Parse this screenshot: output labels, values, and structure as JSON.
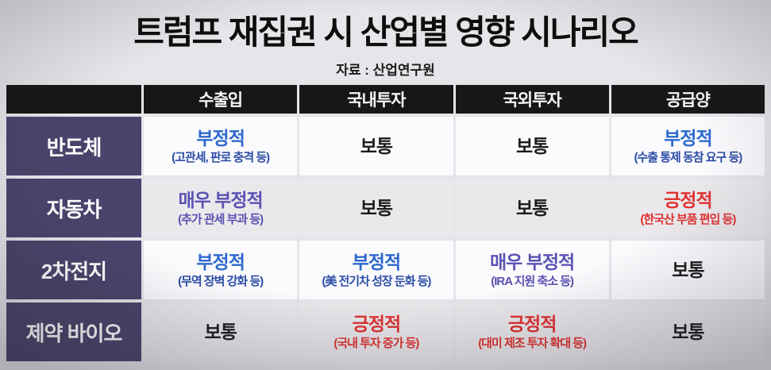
{
  "chart_data": {
    "type": "table",
    "title": "트럼프 재집권 시 산업별 영향 시나리오",
    "source": "자료 : 산업연구원",
    "columns": [
      "수출입",
      "국내투자",
      "국외투자",
      "공급양"
    ],
    "rows": [
      {
        "label": "반도체",
        "cells": [
          {
            "main": "부정적",
            "sub": "(고관세, 판로 충격 등)",
            "sentiment": "negative"
          },
          {
            "main": "보통",
            "sub": "",
            "sentiment": "neutral"
          },
          {
            "main": "보통",
            "sub": "",
            "sentiment": "neutral"
          },
          {
            "main": "부정적",
            "sub": "(수출 통제 동참 요구 등)",
            "sentiment": "negative"
          }
        ]
      },
      {
        "label": "자동차",
        "cells": [
          {
            "main": "매우 부정적",
            "sub": "(추가 관세 부과 등)",
            "sentiment": "very-negative"
          },
          {
            "main": "보통",
            "sub": "",
            "sentiment": "neutral"
          },
          {
            "main": "보통",
            "sub": "",
            "sentiment": "neutral"
          },
          {
            "main": "긍정적",
            "sub": "(한국산 부품 편입 등)",
            "sentiment": "positive"
          }
        ]
      },
      {
        "label": "2차전지",
        "cells": [
          {
            "main": "부정적",
            "sub": "(무역 장벽 강화 등)",
            "sentiment": "negative"
          },
          {
            "main": "부정적",
            "sub": "(美 전기차 성장 둔화 등)",
            "sentiment": "negative"
          },
          {
            "main": "매우 부정적",
            "sub": "(IRA 지원 축소 등)",
            "sentiment": "very-negative"
          },
          {
            "main": "보통",
            "sub": "",
            "sentiment": "neutral"
          }
        ]
      },
      {
        "label": "제약 바이오",
        "cells": [
          {
            "main": "보통",
            "sub": "",
            "sentiment": "neutral"
          },
          {
            "main": "긍정적",
            "sub": "(국내 투자 증가 등)",
            "sentiment": "positive"
          },
          {
            "main": "긍정적",
            "sub": "(대미 제조 투자 확대 등)",
            "sentiment": "positive"
          },
          {
            "main": "보통",
            "sub": "",
            "sentiment": "neutral"
          }
        ]
      }
    ]
  },
  "colors": {
    "header_bg": "#171717",
    "label_bg": "#4a436b",
    "row_light": "#fbfafd",
    "row_gray": "#eae8eb",
    "negative": "#2c68cd",
    "negative_sub": "#2b4da6",
    "very_negative": "#5a52b2",
    "positive": "#e03232",
    "neutral": "#1d1d1f"
  }
}
